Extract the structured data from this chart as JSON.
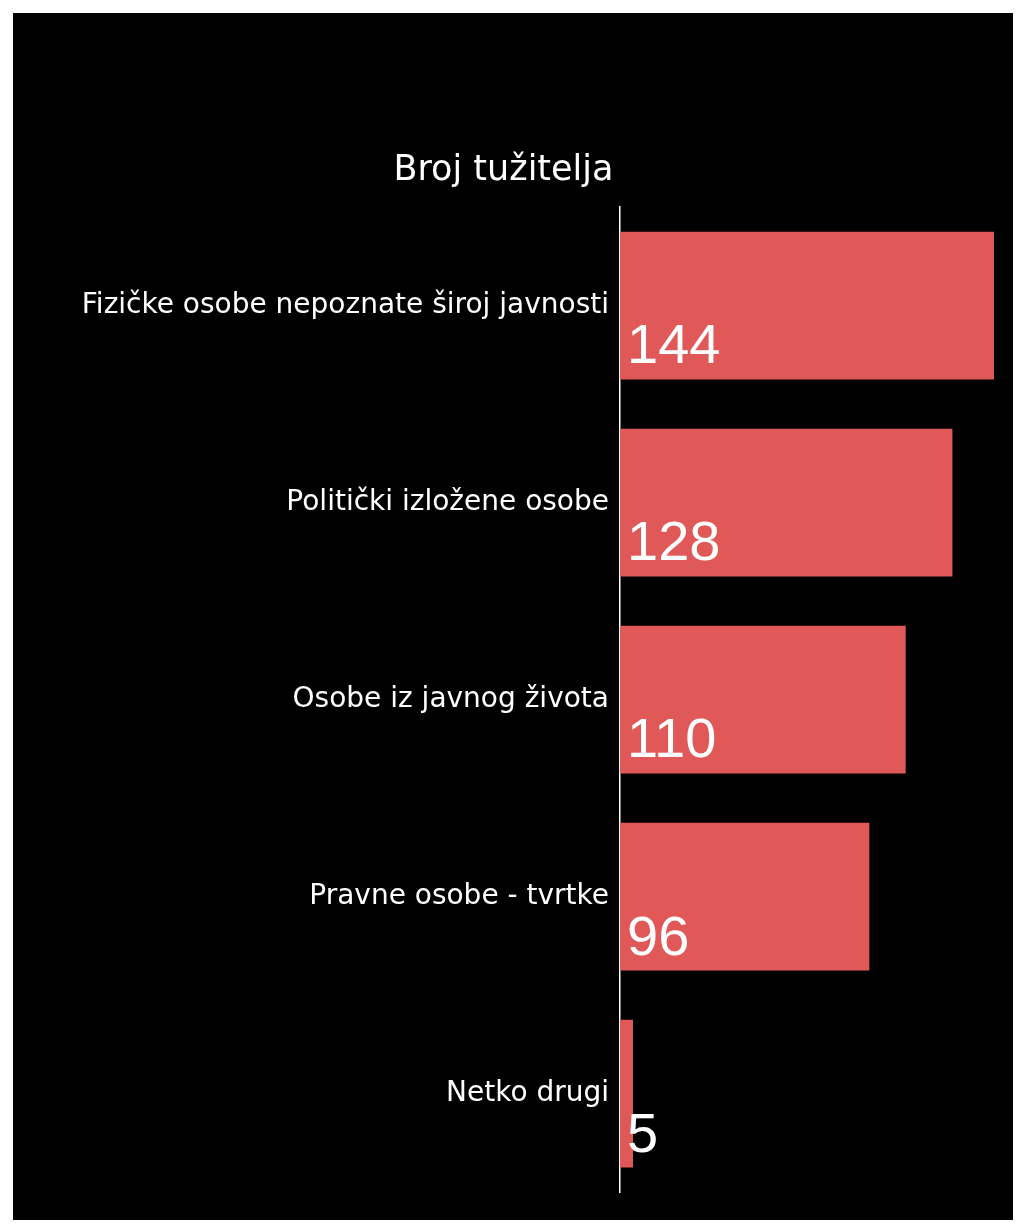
{
  "chart_data": {
    "type": "bar",
    "orientation": "horizontal",
    "title": "Broj tužitelja",
    "categories": [
      "Fizičke osobe nepoznate široj javnosti",
      "Politički izložene osobe",
      "Osobe iz javnog života",
      "Pravne osobe - tvrtke",
      "Netko drugi"
    ],
    "values": [
      144,
      128,
      110,
      96,
      5
    ],
    "color": "#e05858",
    "data_labels": true,
    "tick_labels": "y"
  }
}
